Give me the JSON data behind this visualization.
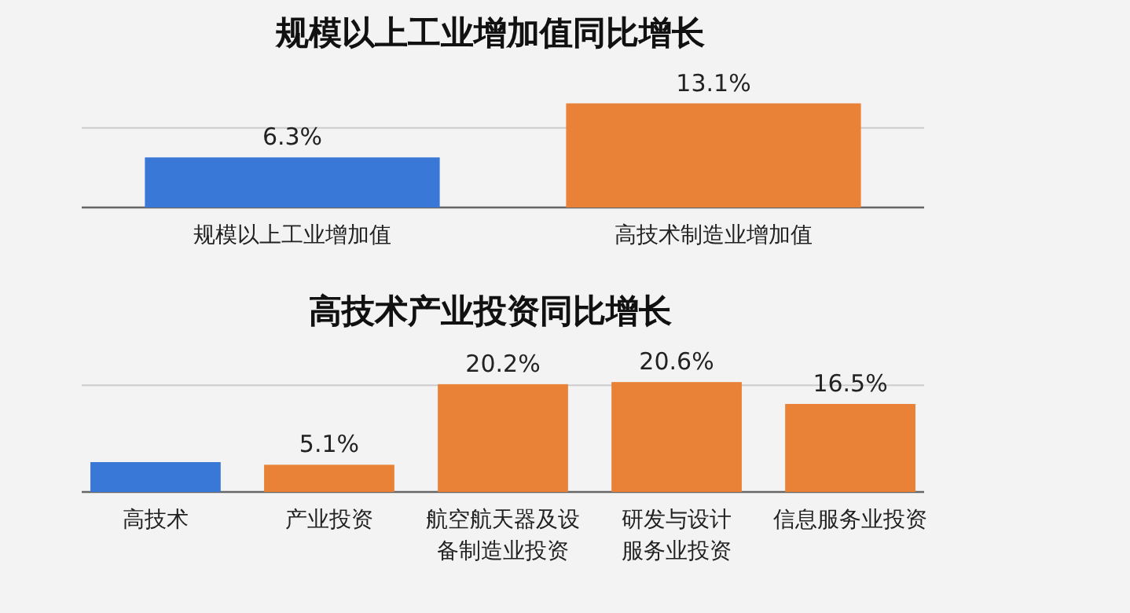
{
  "chart_data": [
    {
      "type": "bar",
      "title": "规模以上工业增加值同比增长",
      "categories": [
        "规模以上工业增加值",
        "高技术制造业增加值"
      ],
      "values": [
        6.3,
        13.1
      ],
      "colors": [
        "#3a78d8",
        "#e98236"
      ],
      "value_labels": [
        "6.3%",
        "13.1%"
      ],
      "ref_lines": [
        {
          "axis": "y",
          "value": 10,
          "color": "#cccccc"
        }
      ]
    },
    {
      "type": "bar",
      "title": "高技术产业投资同比增长",
      "categories": [
        "高技术",
        "产业投资",
        "航空航天器及设备制造业投资",
        "研发与设计服务业投资",
        "信息服务业投资"
      ],
      "values": [
        5.6,
        5.1,
        20.2,
        20.6,
        16.5
      ],
      "colors": [
        "#3a78d8",
        "#e98236",
        "#e98236",
        "#e98236",
        "#e98236"
      ],
      "value_labels": [
        null,
        "5.1%",
        "20.2%",
        "20.6%",
        "16.5%"
      ],
      "ref_lines": [
        {
          "axis": "y",
          "value": 20,
          "color": "#cccccc"
        }
      ]
    }
  ]
}
